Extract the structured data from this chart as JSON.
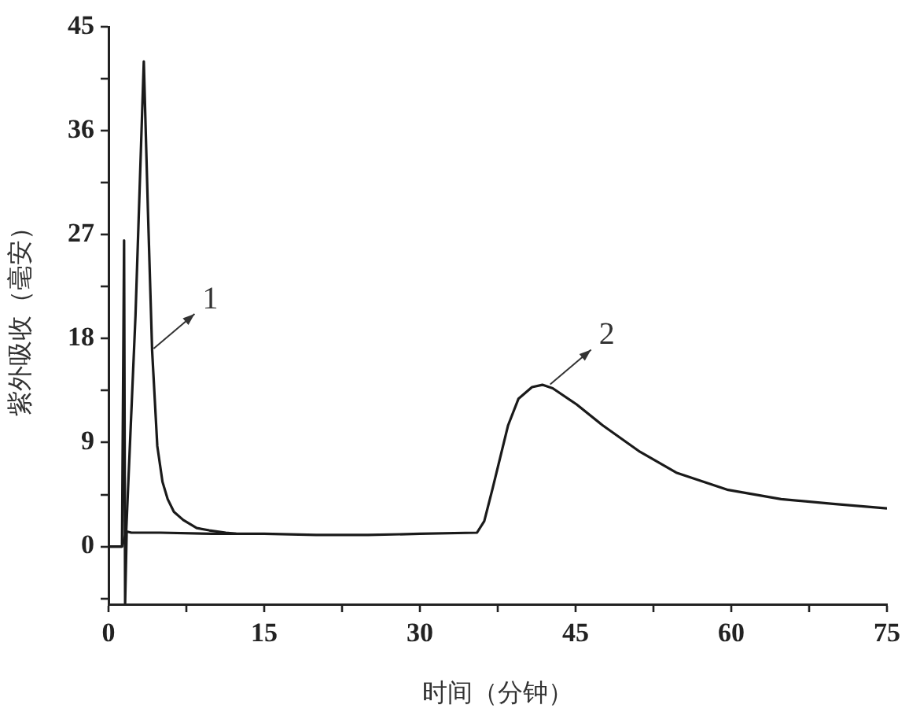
{
  "chart_data": {
    "type": "line",
    "xlabel": "时间（分钟）",
    "ylabel": "紫外吸收（毫安）",
    "xlim": [
      0,
      75
    ],
    "xticks": [
      0,
      {
        "value": 7.5,
        "label": null
      },
      15,
      {
        "value": 22.5,
        "label": null
      },
      30,
      {
        "value": 37.5,
        "label": null
      },
      45,
      {
        "value": 52.5,
        "label": null
      },
      60,
      {
        "value": 67.5,
        "label": null
      },
      75
    ],
    "ylim": [
      -5,
      45
    ],
    "yticks": [
      {
        "value": -4.5,
        "label": null
      },
      0,
      {
        "value": 4.5,
        "label": null
      },
      9,
      {
        "value": 13.5,
        "label": null
      },
      18,
      {
        "value": 22.5,
        "label": null
      },
      27,
      {
        "value": 31.5,
        "label": null
      },
      36,
      {
        "value": 40.5,
        "label": null
      },
      45
    ],
    "grid": false,
    "legend": false,
    "marker": "none",
    "line_style": "solid",
    "series": [
      {
        "color": "#1a1a1a",
        "x": [
          0,
          1.3,
          1.7,
          2.6,
          3.4,
          3.8,
          4.2,
          4.7,
          5.2,
          5.7,
          6.3,
          7.2,
          8.5,
          9.7,
          11.3,
          12.3
        ],
        "values": [
          0,
          0,
          1.2,
          20,
          42,
          29,
          17,
          8.7,
          5.6,
          4.1,
          3.0,
          2.3,
          1.6,
          1.4,
          1.2,
          1.1
        ]
      },
      {
        "color": "#1a1a1a",
        "x": [
          0,
          1.3,
          1.5,
          1.6,
          1.75,
          2.2,
          5,
          10,
          15,
          20,
          25,
          30,
          35.5,
          36.2,
          37.0,
          38.5,
          39.5,
          40.8,
          41.8,
          42.8,
          45.1,
          47.6,
          51.2,
          54.7,
          59.7,
          64.8,
          69.8,
          75
        ],
        "values": [
          0,
          0,
          26.5,
          -4.9,
          1.3,
          1.2,
          1.2,
          1.1,
          1.1,
          1.0,
          1.0,
          1.1,
          1.2,
          2.2,
          5.0,
          10.5,
          12.8,
          13.8,
          14.0,
          13.7,
          12.3,
          10.5,
          8.2,
          6.4,
          4.9,
          4.1,
          3.7,
          3.3
        ]
      }
    ],
    "annotations": [
      {
        "text": "1",
        "x": 4.2,
        "y": 17
      },
      {
        "text": "2",
        "x": 42.4,
        "y": 13.9
      }
    ]
  }
}
